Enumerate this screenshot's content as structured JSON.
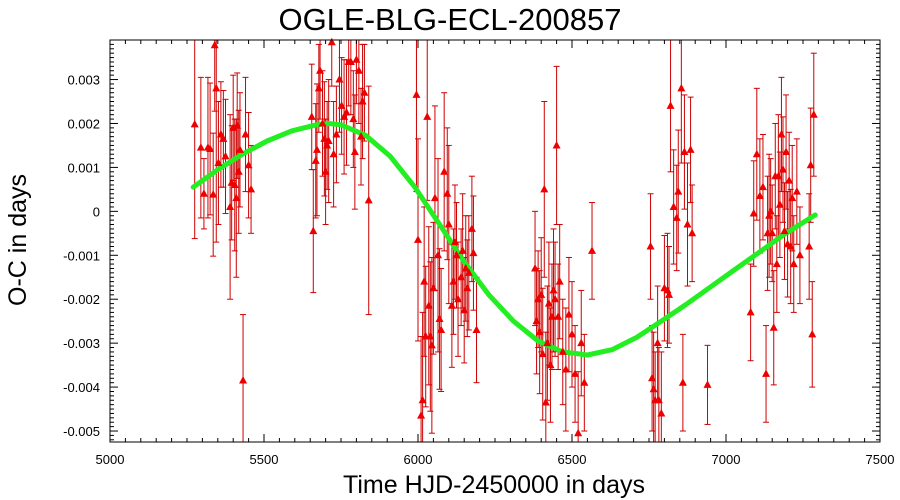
{
  "chart_data": {
    "type": "scatter",
    "title": "OGLE-BLG-ECL-200857",
    "xlabel": "Time HJD-2450000 in days",
    "ylabel": "O-C in days",
    "xlim": [
      5000,
      7500
    ],
    "ylim": [
      -0.00525,
      0.0039
    ],
    "x_ticks": [
      5000,
      5500,
      6000,
      6500,
      7000,
      7500
    ],
    "x_tick_labels": [
      "5000",
      "5500",
      "6000",
      "6500",
      "7000",
      "7500"
    ],
    "y_ticks": [
      -0.005,
      -0.004,
      -0.003,
      -0.002,
      -0.001,
      0,
      0.001,
      0.002,
      0.003
    ],
    "y_tick_labels": [
      "-0.005",
      "-0.004",
      "-0.003",
      "-0.002",
      "-0.001",
      "0",
      "0.001",
      "0.002",
      "0.003"
    ],
    "grid": false,
    "colors": {
      "points": "#ee0000",
      "errorbars": "#cc0000",
      "fit": "#22ee22",
      "frame": "#000000"
    },
    "series": [
      {
        "kind": "points-with-errorbars",
        "marker": "triangle",
        "points": [
          {
            "x": 5275,
            "y": 0.00198,
            "err": 0.0026
          },
          {
            "x": 5295,
            "y": 0.00145,
            "err": 0.0016
          },
          {
            "x": 5305,
            "y": 0.0004,
            "err": 0.0008
          },
          {
            "x": 5318,
            "y": 0.00145,
            "err": 0.0016
          },
          {
            "x": 5325,
            "y": 0.00142,
            "err": 0.0015
          },
          {
            "x": 5335,
            "y": 0.00038,
            "err": 0.0014
          },
          {
            "x": 5340,
            "y": 0.00378,
            "err": 0.0015
          },
          {
            "x": 5345,
            "y": 0.0028,
            "err": 0.0035
          },
          {
            "x": 5352,
            "y": 0.0011,
            "err": 0.0014
          },
          {
            "x": 5360,
            "y": 0.00175,
            "err": 0.0012
          },
          {
            "x": 5368,
            "y": 0.00165,
            "err": 0.0011
          },
          {
            "x": 5375,
            "y": 0.00125,
            "err": 0.0013
          },
          {
            "x": 5390,
            "y": 0.0001,
            "err": 0.0021
          },
          {
            "x": 5395,
            "y": 0.00065,
            "err": 0.0013
          },
          {
            "x": 5400,
            "y": 0.0019,
            "err": 0.0012
          },
          {
            "x": 5405,
            "y": 0.0006,
            "err": 0.0015
          },
          {
            "x": 5410,
            "y": 0.0003,
            "err": 0.0018
          },
          {
            "x": 5413,
            "y": 0.00195,
            "err": 0.0012
          },
          {
            "x": 5418,
            "y": 0.0009,
            "err": 0.0014
          },
          {
            "x": 5422,
            "y": 0.0014,
            "err": 0.0013
          },
          {
            "x": 5432,
            "y": -0.00385,
            "err": 0.0015
          },
          {
            "x": 5440,
            "y": 0.00175,
            "err": 0.0013
          },
          {
            "x": 5450,
            "y": 0.00105,
            "err": 0.0012
          },
          {
            "x": 5458,
            "y": 0.0005,
            "err": 0.001
          },
          {
            "x": 5655,
            "y": 0.00215,
            "err": 0.0012
          },
          {
            "x": 5660,
            "y": -0.00045,
            "err": 0.0014
          },
          {
            "x": 5668,
            "y": 0.00115,
            "err": 0.0013
          },
          {
            "x": 5672,
            "y": 0.0014,
            "err": 0.0015
          },
          {
            "x": 5678,
            "y": 0.0028,
            "err": 0.001
          },
          {
            "x": 5682,
            "y": 0.0032,
            "err": 0.0011
          },
          {
            "x": 5690,
            "y": 0.002,
            "err": 0.0012
          },
          {
            "x": 5696,
            "y": 0.00165,
            "err": 0.0013
          },
          {
            "x": 5700,
            "y": 0.0009,
            "err": 0.0012
          },
          {
            "x": 5705,
            "y": 0.0015,
            "err": 0.001
          },
          {
            "x": 5710,
            "y": 0.0016,
            "err": 0.0014
          },
          {
            "x": 5720,
            "y": 0.00385,
            "err": 0.001
          },
          {
            "x": 5726,
            "y": 0.0013,
            "err": 0.0012
          },
          {
            "x": 5735,
            "y": 0.00175,
            "err": 0.0011
          },
          {
            "x": 5745,
            "y": 0.003,
            "err": 0.0012
          },
          {
            "x": 5752,
            "y": 0.0024,
            "err": 0.0011
          },
          {
            "x": 5760,
            "y": 0.00215,
            "err": 0.0013
          },
          {
            "x": 5768,
            "y": 0.00225,
            "err": 0.0012
          },
          {
            "x": 5775,
            "y": 0.0034,
            "err": 0.001
          },
          {
            "x": 5782,
            "y": 0.0034,
            "err": 0.0012
          },
          {
            "x": 5790,
            "y": 0.0021,
            "err": 0.0011
          },
          {
            "x": 5795,
            "y": 0.00135,
            "err": 0.0013
          },
          {
            "x": 5800,
            "y": 0.00345,
            "err": 0.001
          },
          {
            "x": 5808,
            "y": 0.0032,
            "err": 0.0012
          },
          {
            "x": 5815,
            "y": 0.0017,
            "err": 0.0011
          },
          {
            "x": 5820,
            "y": 0.0025,
            "err": 0.0013
          },
          {
            "x": 5826,
            "y": 0.0027,
            "err": 0.0011
          },
          {
            "x": 5840,
            "y": 0.00025,
            "err": 0.0026
          },
          {
            "x": 5995,
            "y": 0.00265,
            "err": 0.0022
          },
          {
            "x": 6000,
            "y": -0.00065,
            "err": 0.0023
          },
          {
            "x": 6010,
            "y": -0.00465,
            "err": 0.0018
          },
          {
            "x": 6015,
            "y": -0.0043,
            "err": 0.002
          },
          {
            "x": 6020,
            "y": -0.0016,
            "err": 0.0017
          },
          {
            "x": 6025,
            "y": -0.00285,
            "err": 0.0016
          },
          {
            "x": 6030,
            "y": 0.00215,
            "err": 0.0019
          },
          {
            "x": 6035,
            "y": -0.00215,
            "err": 0.0018
          },
          {
            "x": 6040,
            "y": -0.00285,
            "err": 0.0017
          },
          {
            "x": 6045,
            "y": -0.00305,
            "err": 0.002
          },
          {
            "x": 6050,
            "y": -0.00175,
            "err": 0.0015
          },
          {
            "x": 6055,
            "y": 0.0003,
            "err": 0.0021
          },
          {
            "x": 6065,
            "y": -0.001,
            "err": 0.0022
          },
          {
            "x": 6070,
            "y": -0.00245,
            "err": 0.0016
          },
          {
            "x": 6075,
            "y": -0.0027,
            "err": 0.0014
          },
          {
            "x": 6085,
            "y": 0.0009,
            "err": 0.0018
          },
          {
            "x": 6095,
            "y": 0.0004,
            "err": 0.0015
          },
          {
            "x": 6100,
            "y": -0.0003,
            "err": 0.0018
          },
          {
            "x": 6110,
            "y": -0.00215,
            "err": 0.0014
          },
          {
            "x": 6115,
            "y": -0.0016,
            "err": 0.0012
          },
          {
            "x": 6120,
            "y": -0.0007,
            "err": 0.0013
          },
          {
            "x": 6125,
            "y": -0.001,
            "err": 0.0012
          },
          {
            "x": 6130,
            "y": -0.002,
            "err": 0.0013
          },
          {
            "x": 6140,
            "y": -0.0015,
            "err": 0.0011
          },
          {
            "x": 6145,
            "y": -0.0009,
            "err": 0.0013
          },
          {
            "x": 6150,
            "y": -0.00225,
            "err": 0.0012
          },
          {
            "x": 6155,
            "y": -0.0013,
            "err": 0.0012
          },
          {
            "x": 6160,
            "y": -0.00175,
            "err": 0.0011
          },
          {
            "x": 6165,
            "y": -0.0014,
            "err": 0.0013
          },
          {
            "x": 6175,
            "y": -0.0004,
            "err": 0.0012
          },
          {
            "x": 6180,
            "y": -0.00095,
            "err": 0.0013
          },
          {
            "x": 6190,
            "y": -0.0027,
            "err": 0.0012
          },
          {
            "x": 6380,
            "y": -0.0013,
            "err": 0.0013
          },
          {
            "x": 6385,
            "y": -0.0025,
            "err": 0.0012
          },
          {
            "x": 6390,
            "y": -0.002,
            "err": 0.0011
          },
          {
            "x": 6395,
            "y": -0.00275,
            "err": 0.0014
          },
          {
            "x": 6400,
            "y": -0.0019,
            "err": 0.0013
          },
          {
            "x": 6405,
            "y": -0.00325,
            "err": 0.0015
          },
          {
            "x": 6410,
            "y": 0.0005,
            "err": 0.002
          },
          {
            "x": 6415,
            "y": -0.00435,
            "err": 0.0016
          },
          {
            "x": 6420,
            "y": -0.003,
            "err": 0.0013
          },
          {
            "x": 6425,
            "y": -0.0021,
            "err": 0.0014
          },
          {
            "x": 6430,
            "y": -0.0035,
            "err": 0.0013
          },
          {
            "x": 6435,
            "y": -0.0024,
            "err": 0.0012
          },
          {
            "x": 6440,
            "y": -0.0018,
            "err": 0.0014
          },
          {
            "x": 6445,
            "y": -0.002,
            "err": 0.0013
          },
          {
            "x": 6450,
            "y": 0.0015,
            "err": 0.0018
          },
          {
            "x": 6455,
            "y": -0.0024,
            "err": 0.0012
          },
          {
            "x": 6460,
            "y": -0.0016,
            "err": 0.0013
          },
          {
            "x": 6470,
            "y": -0.0032,
            "err": 0.0012
          },
          {
            "x": 6480,
            "y": -0.0036,
            "err": 0.0014
          },
          {
            "x": 6490,
            "y": -0.00235,
            "err": 0.0013
          },
          {
            "x": 6500,
            "y": -0.0028,
            "err": 0.0012
          },
          {
            "x": 6510,
            "y": -0.0037,
            "err": 0.0011
          },
          {
            "x": 6520,
            "y": -0.00505,
            "err": 0.0014
          },
          {
            "x": 6530,
            "y": -0.003,
            "err": 0.0012
          },
          {
            "x": 6540,
            "y": -0.0039,
            "err": 0.0011
          },
          {
            "x": 6565,
            "y": -0.0009,
            "err": 0.0011
          },
          {
            "x": 6755,
            "y": -0.0008,
            "err": 0.0012
          },
          {
            "x": 6760,
            "y": -0.0038,
            "err": 0.0012
          },
          {
            "x": 6765,
            "y": -0.00405,
            "err": 0.0013
          },
          {
            "x": 6770,
            "y": -0.0043,
            "err": 0.0011
          },
          {
            "x": 6778,
            "y": -0.003,
            "err": 0.0013
          },
          {
            "x": 6782,
            "y": -0.0043,
            "err": 0.0012
          },
          {
            "x": 6790,
            "y": -0.0046,
            "err": 0.0014
          },
          {
            "x": 6800,
            "y": -0.00175,
            "err": 0.0012
          },
          {
            "x": 6810,
            "y": -0.0018,
            "err": 0.0013
          },
          {
            "x": 6815,
            "y": -0.0019,
            "err": 0.0011
          },
          {
            "x": 6820,
            "y": 0.0024,
            "err": 0.0015
          },
          {
            "x": 6830,
            "y": 0.0001,
            "err": 0.0013
          },
          {
            "x": 6840,
            "y": -0.00015,
            "err": 0.0012
          },
          {
            "x": 6845,
            "y": 0.00045,
            "err": 0.0014
          },
          {
            "x": 6855,
            "y": 0.0028,
            "err": 0.0017
          },
          {
            "x": 6860,
            "y": -0.0039,
            "err": 0.0011
          },
          {
            "x": 6865,
            "y": 0.00135,
            "err": 0.0013
          },
          {
            "x": 6875,
            "y": -0.0003,
            "err": 0.0014
          },
          {
            "x": 6885,
            "y": 0.0014,
            "err": 0.0012
          },
          {
            "x": 6890,
            "y": -0.0005,
            "err": 0.0011
          },
          {
            "x": 6940,
            "y": -0.00395,
            "err": 0.0009
          },
          {
            "x": 7080,
            "y": -0.0023,
            "err": 0.0011
          },
          {
            "x": 7090,
            "y": -5e-05,
            "err": 0.0012
          },
          {
            "x": 7100,
            "y": 0.0013,
            "err": 0.0015
          },
          {
            "x": 7110,
            "y": 0.00035,
            "err": 0.0013
          },
          {
            "x": 7120,
            "y": 0.00055,
            "err": 0.0012
          },
          {
            "x": 7130,
            "y": -0.0037,
            "err": 0.0011
          },
          {
            "x": 7135,
            "y": -0.0005,
            "err": 0.0013
          },
          {
            "x": 7140,
            "y": -0.0001,
            "err": 0.0014
          },
          {
            "x": 7145,
            "y": 0.0,
            "err": 0.0012
          },
          {
            "x": 7150,
            "y": -0.0005,
            "err": 0.0011
          },
          {
            "x": 7155,
            "y": -0.00265,
            "err": 0.0013
          },
          {
            "x": 7160,
            "y": 0.0008,
            "err": 0.0012
          },
          {
            "x": 7165,
            "y": -0.0012,
            "err": 0.0011
          },
          {
            "x": 7170,
            "y": 0.0008,
            "err": 0.0014
          },
          {
            "x": 7175,
            "y": 0.00015,
            "err": 0.0012
          },
          {
            "x": 7180,
            "y": 0.00175,
            "err": 0.0013
          },
          {
            "x": 7185,
            "y": 0.00095,
            "err": 0.0012
          },
          {
            "x": 7190,
            "y": -0.00045,
            "err": 0.0011
          },
          {
            "x": 7195,
            "y": 0.00135,
            "err": 0.0013
          },
          {
            "x": 7200,
            "y": -0.00075,
            "err": 0.0012
          },
          {
            "x": 7205,
            "y": 0.0007,
            "err": 0.0011
          },
          {
            "x": 7210,
            "y": -0.0008,
            "err": 0.0013
          },
          {
            "x": 7215,
            "y": 0.0003,
            "err": 0.0012
          },
          {
            "x": 7220,
            "y": -0.0012,
            "err": 0.0011
          },
          {
            "x": 7230,
            "y": 0.00045,
            "err": 0.0012
          },
          {
            "x": 7240,
            "y": -0.001,
            "err": 0.0011
          },
          {
            "x": 7270,
            "y": -0.0008,
            "err": 0.0012
          },
          {
            "x": 7275,
            "y": 0.00105,
            "err": 0.0013
          },
          {
            "x": 7280,
            "y": -0.0028,
            "err": 0.0012
          },
          {
            "x": 7285,
            "y": 0.0022,
            "err": 0.0014
          }
        ]
      },
      {
        "kind": "fit-line",
        "x": [
          5270,
          5350,
          5430,
          5510,
          5590,
          5670,
          5710,
          5750,
          5830,
          5910,
          5990,
          6070,
          6150,
          6230,
          6310,
          6390,
          6470,
          6550,
          6630,
          6710,
          6790,
          6870,
          6950,
          7030,
          7110,
          7190,
          7290
        ],
        "y": [
          0.00055,
          0.00095,
          0.0013,
          0.0016,
          0.00183,
          0.00197,
          0.002,
          0.00197,
          0.00173,
          0.00125,
          0.00055,
          -0.0003,
          -0.00115,
          -0.0019,
          -0.0025,
          -0.00295,
          -0.0032,
          -0.00327,
          -0.00315,
          -0.00287,
          -0.0025,
          -0.00212,
          -0.00172,
          -0.00132,
          -0.00092,
          -0.00052,
          -8e-05
        ]
      }
    ]
  }
}
